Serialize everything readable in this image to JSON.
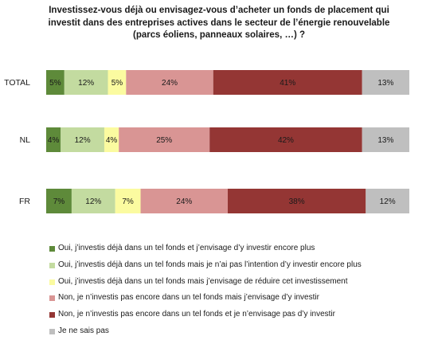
{
  "chart_data": {
    "type": "bar",
    "orientation": "horizontal",
    "stacked": true,
    "title": "Investissez-vous déjà ou envisagez-vous d’acheter un fonds de placement qui investit dans des entreprises actives dans le secteur de l’énergie renouvelable (parcs éoliens, panneaux solaires, …) ?",
    "title_lines": [
      "Investissez-vous déjà ou envisagez-vous d’acheter un fonds de placement qui",
      "investit dans des entreprises actives dans le secteur de l’énergie renouvelable",
      "(parcs éoliens, panneaux solaires, …) ?"
    ],
    "categories": [
      "TOTAL",
      "NL",
      "FR"
    ],
    "xlim": [
      0,
      100
    ],
    "grid": false,
    "legend_position": "bottom",
    "series": [
      {
        "name": "Oui, j’investis déjà dans un tel fonds et j’envisage d’y investir encore plus",
        "color": "#5e8a3a",
        "values": [
          5,
          4,
          7
        ]
      },
      {
        "name": "Oui, j’investis déjà dans un tel fonds mais je n’ai pas l’intention d’y investir encore plus",
        "color": "#c3dba0",
        "values": [
          12,
          12,
          12
        ]
      },
      {
        "name": "Oui, j’investis déjà dans un tel fonds mais j’envisage de réduire cet investissement",
        "color": "#fbfba0",
        "values": [
          5,
          4,
          7
        ]
      },
      {
        "name": "Non, je n’investis pas encore dans un tel fonds mais j’envisage d’y investir",
        "color": "#d99594",
        "values": [
          24,
          25,
          24
        ]
      },
      {
        "name": "Non, je n’investis pas encore dans un tel fonds et je n’envisage pas d’y investir",
        "color": "#943634",
        "values": [
          41,
          42,
          38
        ]
      },
      {
        "name": "Je ne sais pas",
        "color": "#bfbfbf",
        "values": [
          13,
          13,
          12
        ]
      }
    ]
  }
}
